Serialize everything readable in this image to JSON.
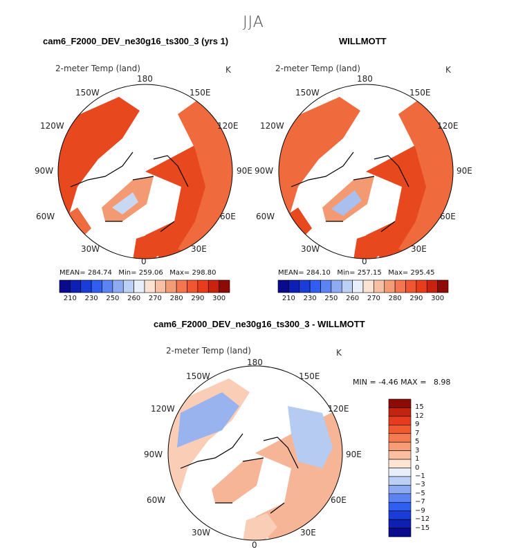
{
  "season": "JJA",
  "panels": [
    {
      "title": "cam6_F2000_DEV_ne30g16_ts300_3 (yrs 1)",
      "variable": "2-meter Temp (land)",
      "units": "K",
      "stats": {
        "mean_label": "MEAN=",
        "mean": "284.74",
        "min_label": "Min=",
        "min": "259.06",
        "max_label": "Max=",
        "max": "298.80"
      }
    },
    {
      "title": "WILLMOTT",
      "variable": "2-meter Temp (land)",
      "units": "K",
      "stats": {
        "mean_label": "MEAN=",
        "mean": "284.10",
        "min_label": "Min=",
        "min": "257.15",
        "max_label": "Max=",
        "max": "295.45"
      }
    },
    {
      "title": "cam6_F2000_DEV_ne30g16_ts300_3 - WILLMOTT",
      "variable": "2-meter Temp (land)",
      "units": "K",
      "stats": {
        "min_label": "MIN =",
        "min": "-4.46",
        "max_label": "MAX =",
        "max": "8.98"
      }
    }
  ],
  "lon_labels": [
    "180",
    "150E",
    "120E",
    "90E",
    "60E",
    "30E",
    "0",
    "30W",
    "60W",
    "90W",
    "120W",
    "150W"
  ],
  "colorbar_abs": {
    "ticks": [
      "210",
      "230",
      "250",
      "260",
      "270",
      "280",
      "290",
      "300"
    ],
    "colors": [
      "#0a0a8c",
      "#0e1fb4",
      "#1a3cd8",
      "#2f5ef0",
      "#5b84f2",
      "#8eaaf0",
      "#bccff4",
      "#e8eefa",
      "#fbe3d4",
      "#f7c0a4",
      "#f49c76",
      "#f37650",
      "#f15630",
      "#e83c1c",
      "#c92310",
      "#8e0a05"
    ]
  },
  "colorbar_diff": {
    "ticks": [
      "15",
      "12",
      "9",
      "7",
      "5",
      "3",
      "1",
      "0",
      "−1",
      "−3",
      "−5",
      "−7",
      "−9",
      "−12",
      "−15"
    ],
    "colors": [
      "#8e0a05",
      "#c32410",
      "#e43c1c",
      "#f05a2e",
      "#f57a4f",
      "#f79c74",
      "#f9bfa0",
      "#fde4d3",
      "#e8eefa",
      "#bccff4",
      "#8eaaf0",
      "#5b84f2",
      "#2f5ef0",
      "#1a3cd8",
      "#0e1fb4",
      "#0a0a8c"
    ]
  },
  "map_colors": {
    "warm1": "#e8481e",
    "warm2": "#ef6a3c",
    "warm3": "#f49a72",
    "cool1": "#c9d8f2",
    "cool2": "#a9c0ee",
    "diff_pos": "#f6b597",
    "diff_pos2": "#f9cdb6",
    "diff_neg": "#b6cbf2",
    "diff_neg2": "#98b3ee",
    "coast": "#000000"
  }
}
